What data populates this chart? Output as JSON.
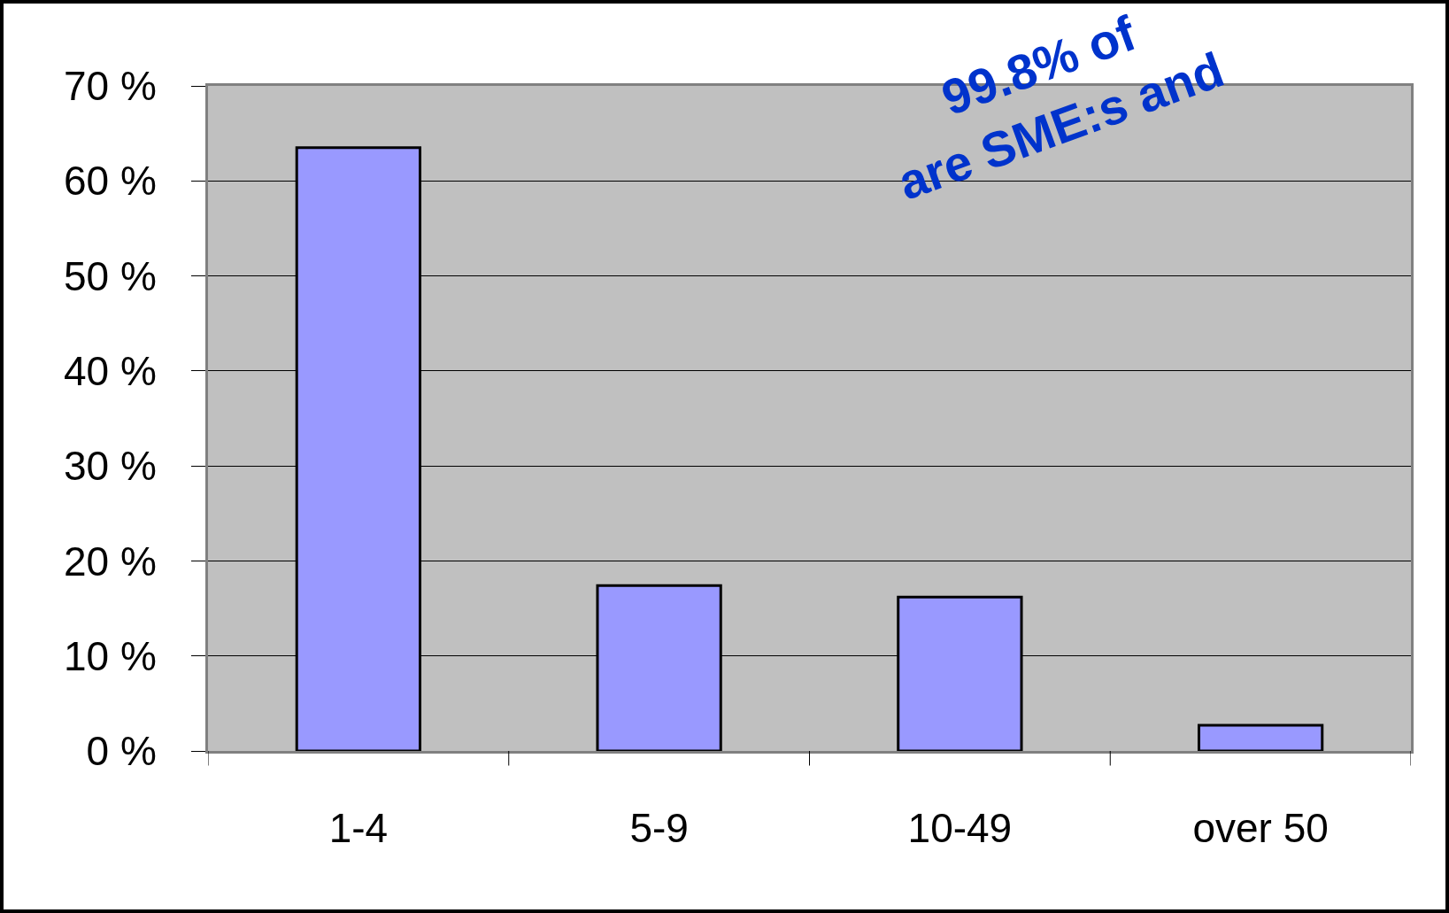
{
  "chart_data": {
    "type": "bar",
    "categories": [
      "1-4",
      "5-9",
      "10-49",
      "over 50"
    ],
    "values": [
      63.5,
      17.4,
      16.2,
      2.7
    ],
    "color": "#9999ff",
    "ylim": [
      0,
      70
    ],
    "yticks": [
      {
        "value": 0,
        "label": "0 %"
      },
      {
        "value": 10,
        "label": "10 %"
      },
      {
        "value": 20,
        "label": "20 %"
      },
      {
        "value": 30,
        "label": "30 %"
      },
      {
        "value": 40,
        "label": "40 %"
      },
      {
        "value": 50,
        "label": "50 %"
      },
      {
        "value": 60,
        "label": "60 %"
      },
      {
        "value": 70,
        "label": "70 %"
      }
    ],
    "grid": "y",
    "annotations": [
      "99.8% of\nare SME:s and"
    ]
  }
}
